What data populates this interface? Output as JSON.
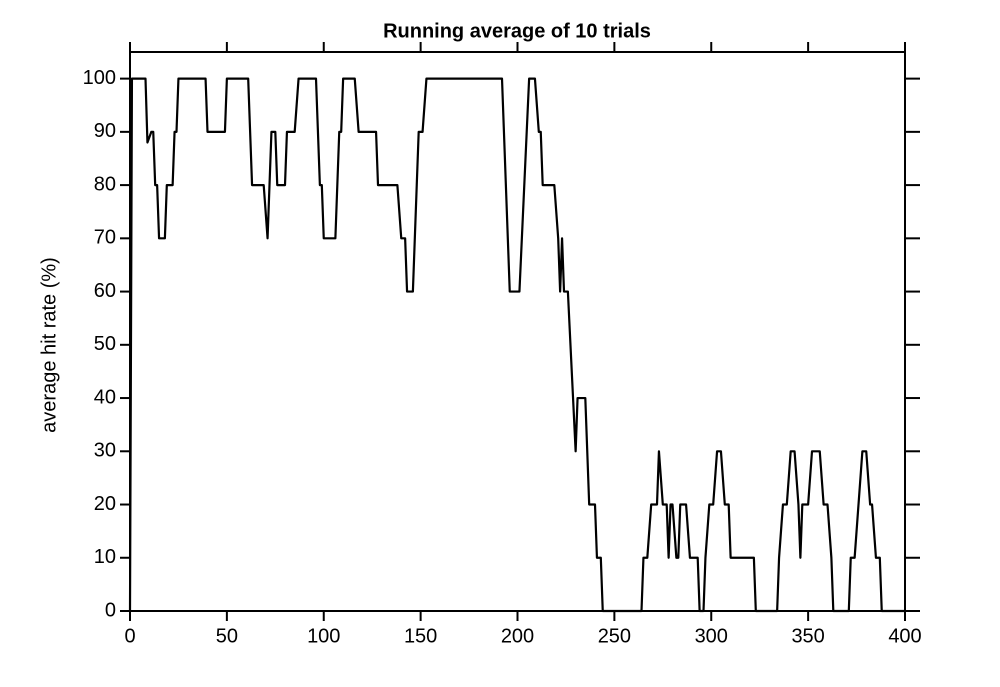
{
  "chart_data": {
    "type": "line",
    "title": "Running average of 10 trials",
    "ylabel": "average hit rate (%)",
    "x": [
      0,
      1,
      8,
      9,
      11,
      12,
      13,
      14,
      15,
      18,
      19,
      22,
      23,
      24,
      25,
      39,
      40,
      49,
      50,
      61,
      63,
      69,
      71,
      73,
      75,
      76,
      80,
      81,
      85,
      87,
      96,
      98,
      99,
      100,
      106,
      108,
      109,
      110,
      116,
      118,
      127,
      128,
      138,
      140,
      142,
      143,
      146,
      148,
      149,
      151,
      153,
      192,
      196,
      201,
      206,
      209,
      211,
      212,
      213,
      219,
      221,
      222,
      223,
      224,
      226,
      230,
      231,
      235,
      237,
      240,
      241,
      243,
      244,
      264,
      265,
      267,
      269,
      272,
      273,
      275,
      277,
      278,
      279,
      280,
      282,
      283,
      284,
      287,
      289,
      293,
      294,
      296,
      297,
      299,
      301,
      303,
      305,
      307,
      309,
      310,
      322,
      323,
      334,
      335,
      337,
      339,
      341,
      343,
      345,
      346,
      347,
      350,
      352,
      356,
      358,
      360,
      362,
      363,
      371,
      372,
      374,
      376,
      378,
      380,
      382,
      383,
      385,
      387,
      388,
      400
    ],
    "values": [
      0,
      100,
      100,
      88,
      90,
      90,
      80,
      80,
      70,
      70,
      80,
      80,
      90,
      90,
      100,
      100,
      90,
      90,
      100,
      100,
      80,
      80,
      70,
      90,
      90,
      80,
      80,
      90,
      90,
      100,
      100,
      80,
      80,
      70,
      70,
      90,
      90,
      100,
      100,
      90,
      90,
      80,
      80,
      70,
      70,
      60,
      60,
      80,
      90,
      90,
      100,
      100,
      60,
      60,
      100,
      100,
      90,
      90,
      80,
      80,
      70,
      60,
      70,
      60,
      60,
      30,
      40,
      40,
      20,
      20,
      10,
      10,
      0,
      0,
      10,
      10,
      20,
      20,
      30,
      20,
      20,
      10,
      20,
      20,
      10,
      10,
      20,
      20,
      10,
      10,
      0,
      0,
      10,
      20,
      20,
      30,
      30,
      20,
      20,
      10,
      10,
      0,
      0,
      10,
      20,
      20,
      30,
      30,
      20,
      10,
      20,
      20,
      30,
      30,
      20,
      20,
      10,
      0,
      0,
      10,
      10,
      20,
      30,
      30,
      20,
      20,
      10,
      10,
      0,
      0
    ],
    "color": "#000000",
    "xlim": [
      0,
      400
    ],
    "xticks": [
      0,
      50,
      100,
      150,
      200,
      250,
      300,
      350,
      400
    ],
    "ylim": [
      0,
      105
    ],
    "yticks": [
      0,
      10,
      20,
      30,
      40,
      50,
      60,
      70,
      80,
      90,
      100
    ]
  }
}
